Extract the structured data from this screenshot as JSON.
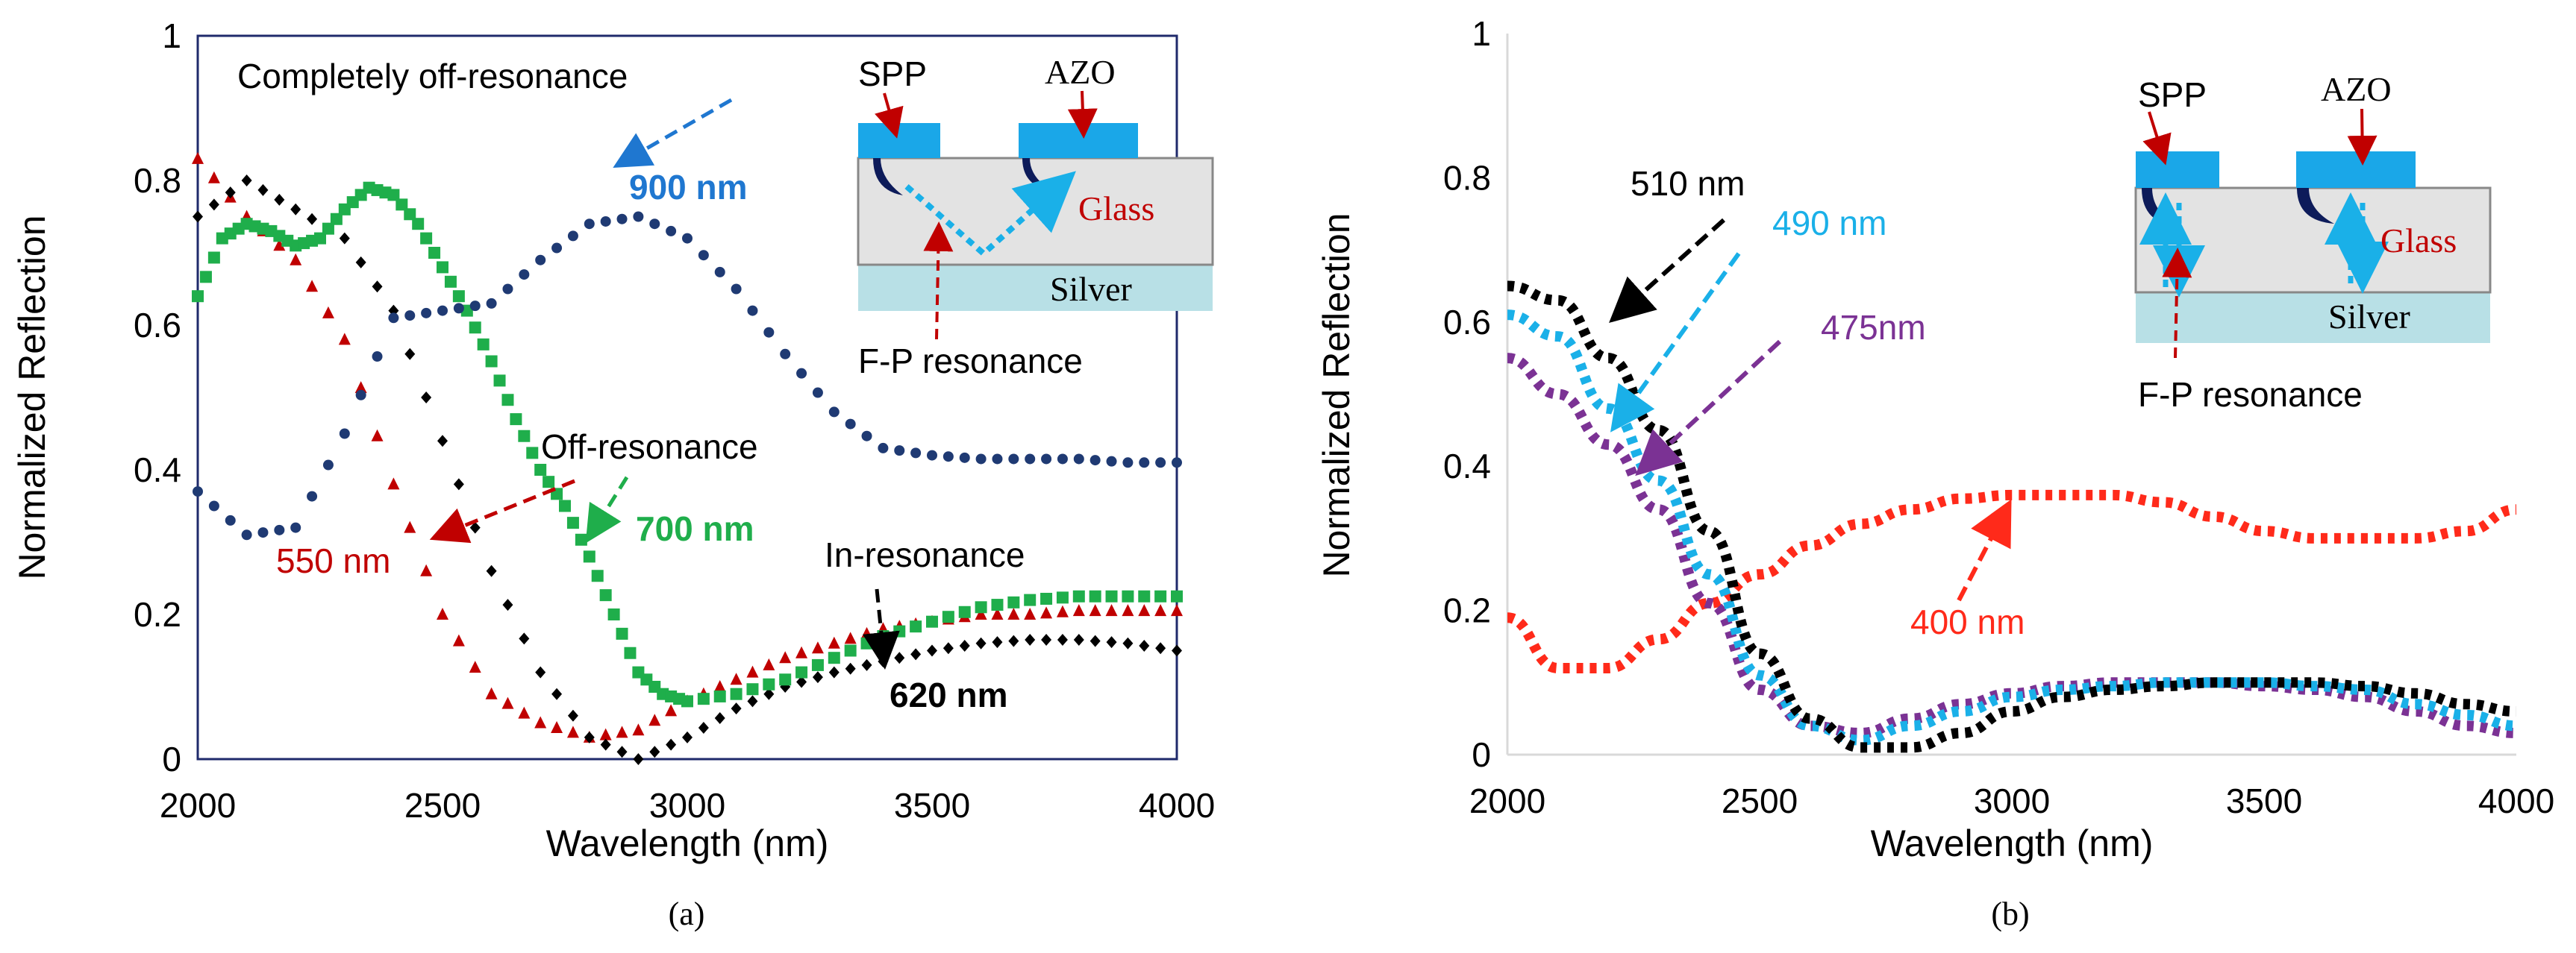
{
  "chart_data": [
    {
      "type": "scatter",
      "panel_label": "(a)",
      "xlabel": "Wavelength (nm)",
      "ylabel": "Normalized Reflection",
      "xlim": [
        2000,
        4000
      ],
      "ylim": [
        0,
        1
      ],
      "x_ticks": [
        "2000",
        "2500",
        "3000",
        "3500",
        "4000"
      ],
      "y_ticks": [
        "0",
        "0.2",
        "0.4",
        "0.6",
        "0.8",
        "1"
      ],
      "grid": false,
      "series": [
        {
          "name": "550 nm",
          "marker": "triangle",
          "color": "#c00000",
          "x": [
            2000,
            2100,
            2200,
            2300,
            2400,
            2500,
            2600,
            2700,
            2800,
            2900,
            3000,
            3100,
            3200,
            3300,
            3400,
            3500,
            3600,
            3700,
            3800,
            3900,
            4000
          ],
          "y": [
            0.83,
            0.75,
            0.69,
            0.58,
            0.38,
            0.2,
            0.09,
            0.05,
            0.03,
            0.04,
            0.08,
            0.11,
            0.14,
            0.16,
            0.18,
            0.19,
            0.2,
            0.2,
            0.205,
            0.205,
            0.205
          ]
        },
        {
          "name": "620 nm",
          "marker": "diamond",
          "color": "#000000",
          "x": [
            2000,
            2100,
            2200,
            2300,
            2400,
            2500,
            2600,
            2700,
            2800,
            2900,
            3000,
            3100,
            3200,
            3300,
            3400,
            3500,
            3600,
            3700,
            3800,
            3900,
            4000
          ],
          "y": [
            0.75,
            0.8,
            0.76,
            0.72,
            0.62,
            0.44,
            0.26,
            0.12,
            0.03,
            0.0,
            0.03,
            0.07,
            0.1,
            0.12,
            0.135,
            0.15,
            0.16,
            0.165,
            0.165,
            0.16,
            0.15
          ]
        },
        {
          "name": "700 nm",
          "marker": "square",
          "color": "#1fae4b",
          "x": [
            2000,
            2050,
            2100,
            2150,
            2200,
            2250,
            2300,
            2350,
            2400,
            2450,
            2500,
            2550,
            2600,
            2650,
            2700,
            2750,
            2800,
            2850,
            2900,
            2950,
            3000,
            3100,
            3200,
            3300,
            3400,
            3500,
            3600,
            3700,
            3800,
            3900,
            4000
          ],
          "y": [
            0.64,
            0.72,
            0.74,
            0.73,
            0.71,
            0.72,
            0.76,
            0.79,
            0.78,
            0.74,
            0.68,
            0.62,
            0.55,
            0.47,
            0.4,
            0.35,
            0.28,
            0.2,
            0.12,
            0.09,
            0.08,
            0.09,
            0.11,
            0.14,
            0.17,
            0.19,
            0.21,
            0.22,
            0.225,
            0.225,
            0.225
          ]
        },
        {
          "name": "900 nm",
          "marker": "circle",
          "color": "#1f3a73",
          "x": [
            2000,
            2100,
            2200,
            2300,
            2400,
            2500,
            2600,
            2700,
            2800,
            2900,
            3000,
            3100,
            3200,
            3300,
            3400,
            3500,
            3600,
            3700,
            3800,
            3900,
            4000
          ],
          "y": [
            0.37,
            0.31,
            0.32,
            0.45,
            0.61,
            0.62,
            0.63,
            0.69,
            0.74,
            0.75,
            0.72,
            0.65,
            0.56,
            0.48,
            0.43,
            0.42,
            0.415,
            0.415,
            0.415,
            0.41,
            0.41
          ]
        }
      ],
      "annotations": [
        {
          "id": "completely",
          "text": "Completely off-resonance"
        },
        {
          "id": "nm900",
          "text": "900 nm"
        },
        {
          "id": "off",
          "text": "Off-resonance"
        },
        {
          "id": "nm700",
          "text": "700 nm"
        },
        {
          "id": "nm550",
          "text": "550 nm"
        },
        {
          "id": "in",
          "text": "In-resonance"
        },
        {
          "id": "nm620",
          "text": "620 nm"
        }
      ],
      "inset": {
        "spp": "SPP",
        "azo": "AZO",
        "glass": "Glass",
        "silver": "Silver",
        "fp": "F-P resonance"
      }
    },
    {
      "type": "line",
      "panel_label": "(b)",
      "xlabel": "Wavelength (nm)",
      "ylabel": "Normalized Reflection",
      "xlim": [
        2000,
        4000
      ],
      "ylim": [
        0,
        1
      ],
      "x_ticks": [
        "2000",
        "2500",
        "3000",
        "3500",
        "4000"
      ],
      "y_ticks": [
        "0",
        "0.2",
        "0.4",
        "0.6",
        "0.8",
        "1"
      ],
      "grid": false,
      "series": [
        {
          "name": "400 nm",
          "color": "#ff2a1a",
          "x": [
            2000,
            2100,
            2200,
            2300,
            2400,
            2500,
            2600,
            2700,
            2800,
            2900,
            3000,
            3100,
            3200,
            3300,
            3400,
            3500,
            3600,
            3700,
            3800,
            3900,
            4000
          ],
          "y": [
            0.19,
            0.12,
            0.12,
            0.16,
            0.21,
            0.25,
            0.29,
            0.32,
            0.34,
            0.355,
            0.36,
            0.36,
            0.36,
            0.35,
            0.33,
            0.31,
            0.3,
            0.3,
            0.3,
            0.31,
            0.34
          ]
        },
        {
          "name": "475nm",
          "color": "#7b3294",
          "x": [
            2000,
            2100,
            2200,
            2300,
            2400,
            2500,
            2600,
            2700,
            2800,
            2900,
            3000,
            3100,
            3200,
            3300,
            3400,
            3500,
            3600,
            3700,
            3800,
            3900,
            4000
          ],
          "y": [
            0.55,
            0.5,
            0.43,
            0.34,
            0.21,
            0.09,
            0.04,
            0.03,
            0.05,
            0.07,
            0.085,
            0.095,
            0.1,
            0.1,
            0.1,
            0.095,
            0.09,
            0.08,
            0.06,
            0.04,
            0.03
          ]
        },
        {
          "name": "490 nm",
          "color": "#1ab0e8",
          "x": [
            2000,
            2100,
            2200,
            2300,
            2400,
            2500,
            2600,
            2700,
            2800,
            2900,
            3000,
            3100,
            3200,
            3300,
            3400,
            3500,
            3600,
            3700,
            3800,
            3900,
            4000
          ],
          "y": [
            0.61,
            0.58,
            0.48,
            0.38,
            0.25,
            0.11,
            0.04,
            0.02,
            0.04,
            0.06,
            0.08,
            0.09,
            0.095,
            0.1,
            0.1,
            0.1,
            0.095,
            0.09,
            0.07,
            0.055,
            0.04
          ]
        },
        {
          "name": "510 nm",
          "color": "#000000",
          "x": [
            2000,
            2100,
            2200,
            2300,
            2400,
            2500,
            2600,
            2700,
            2800,
            2900,
            3000,
            3100,
            3200,
            3300,
            3400,
            3500,
            3600,
            3700,
            3800,
            3900,
            4000
          ],
          "y": [
            0.65,
            0.63,
            0.55,
            0.45,
            0.31,
            0.14,
            0.05,
            0.01,
            0.01,
            0.03,
            0.06,
            0.08,
            0.09,
            0.095,
            0.1,
            0.1,
            0.1,
            0.095,
            0.085,
            0.07,
            0.06
          ]
        }
      ],
      "annotations": [
        {
          "id": "nm510",
          "text": "510 nm"
        },
        {
          "id": "nm490",
          "text": "490 nm"
        },
        {
          "id": "nm475",
          "text": "475nm"
        },
        {
          "id": "nm400",
          "text": "400 nm"
        }
      ],
      "inset": {
        "spp": "SPP",
        "azo": "AZO",
        "glass": "Glass",
        "silver": "Silver",
        "fp": "F-P resonance"
      }
    }
  ]
}
